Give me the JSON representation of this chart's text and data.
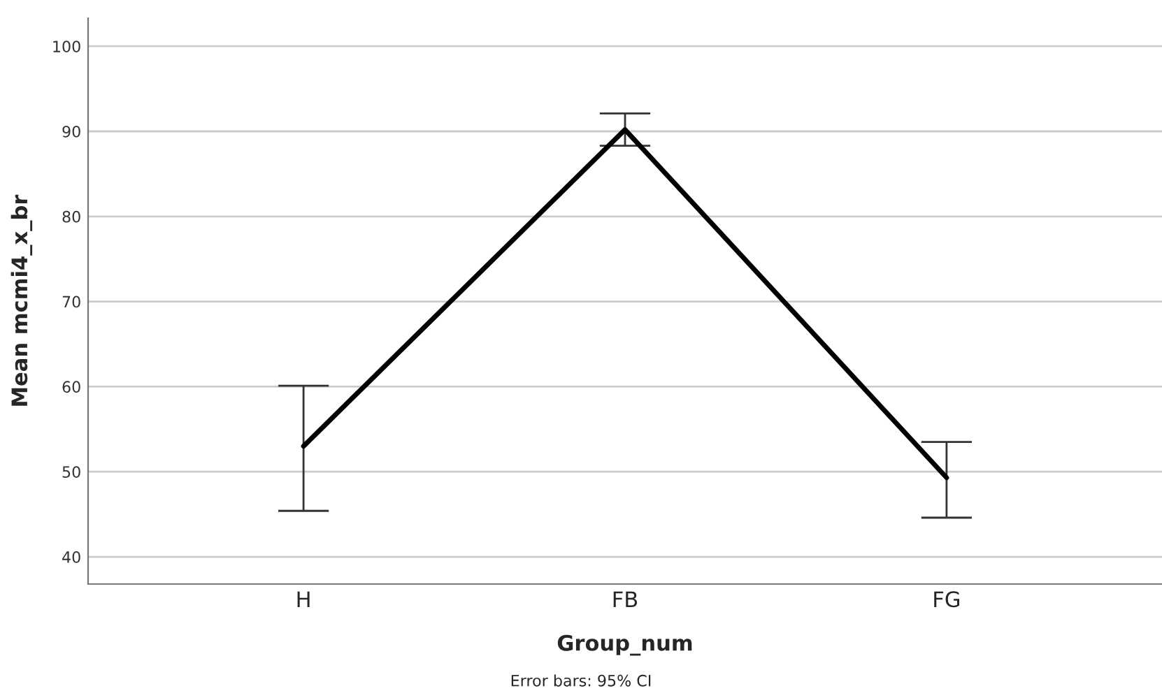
{
  "chart_data": {
    "type": "line",
    "xlabel": "Group_num",
    "ylabel": "Mean mcmi4_x_br",
    "categories": [
      "H",
      "FB",
      "FG"
    ],
    "series": [
      {
        "color": "#000000",
        "values": [
          53.0,
          90.2,
          49.3
        ],
        "errors": [
          [
            45.4,
            60.1
          ],
          [
            88.3,
            92.1
          ],
          [
            44.6,
            53.5
          ]
        ]
      }
    ],
    "ylim": [
      36.8,
      103.3
    ],
    "yticks": [
      40,
      50,
      60,
      70,
      80,
      90,
      100
    ],
    "grid": "y",
    "marker": "none",
    "line_style": "solid",
    "annotations": [
      "Error bars: 95% CI"
    ]
  }
}
